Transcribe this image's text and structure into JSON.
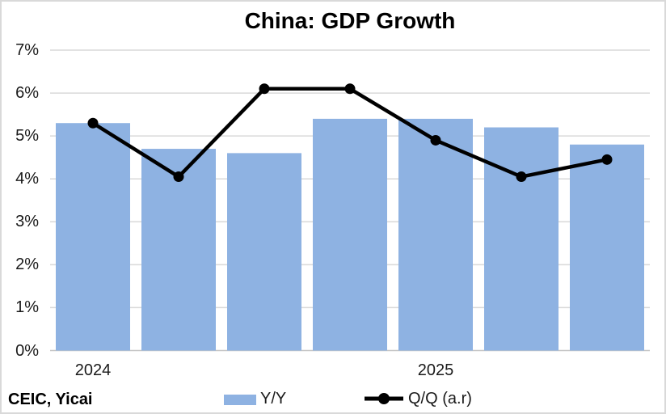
{
  "title": "China: GDP Growth",
  "source_note": "CEIC, Yicai",
  "colors": {
    "bar_fill": "#8EB2E2",
    "line": "#000000",
    "gridline": "#D9D9D9",
    "axis_line": "#C6C6C6",
    "text": "#1A1A1A",
    "frame_border": "#D9D9D9",
    "background": "#FFFFFF"
  },
  "legend": {
    "items": [
      {
        "label": "Y/Y",
        "swatch": "bar"
      },
      {
        "label": "Q/Q (a.r)",
        "swatch": "line-marker"
      }
    ],
    "position": "bottom"
  },
  "chart_data": {
    "type": "bar",
    "subtype": "combo bar + line with markers",
    "title": "China: GDP Growth",
    "n_categories": 7,
    "x_axis": {
      "labels": [
        {
          "text": "2024",
          "category_index": 0
        },
        {
          "text": "2025",
          "category_index": 4
        }
      ]
    },
    "y_axis": {
      "min": 0,
      "max": 7,
      "step": 1,
      "tick_labels": [
        "0%",
        "1%",
        "2%",
        "3%",
        "4%",
        "5%",
        "6%",
        "7%"
      ],
      "grid": true
    },
    "series": [
      {
        "name": "Y/Y",
        "type": "bar",
        "values": [
          5.3,
          4.7,
          4.6,
          5.4,
          5.4,
          5.2,
          4.8
        ]
      },
      {
        "name": "Q/Q (a.r)",
        "type": "line",
        "values": [
          5.3,
          4.05,
          6.1,
          6.1,
          4.9,
          4.05,
          4.45
        ]
      }
    ],
    "legend_position": "bottom"
  }
}
